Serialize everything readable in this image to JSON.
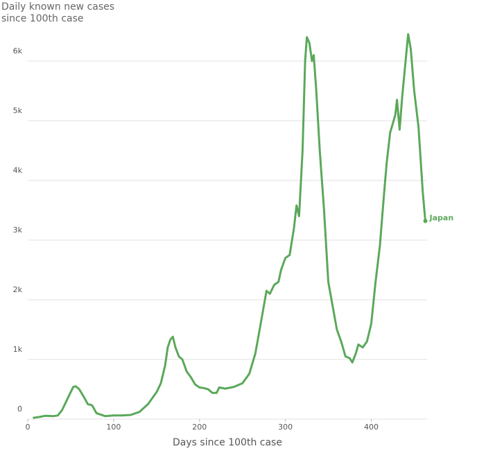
{
  "chart_data": {
    "type": "line",
    "title": "Daily known new cases since 100th case",
    "x_label": "Days since 100th case",
    "xlim": [
      0,
      465
    ],
    "xticks": [
      0,
      100,
      200,
      300,
      400
    ],
    "ylim": [
      0,
      6500
    ],
    "yticks": [
      0,
      {
        "value": 1000,
        "label": "1k"
      },
      {
        "value": 2000,
        "label": "2k"
      },
      {
        "value": 3000,
        "label": "3k"
      },
      {
        "value": 4000,
        "label": "4k"
      },
      {
        "value": 5000,
        "label": "5k"
      },
      {
        "value": 6000,
        "label": "6k"
      }
    ],
    "grid": true,
    "x": [
      6,
      15,
      20,
      30,
      35,
      40,
      45,
      50,
      53,
      56,
      60,
      65,
      70,
      75,
      80,
      90,
      100,
      110,
      120,
      130,
      140,
      150,
      155,
      160,
      163,
      166,
      169,
      172,
      176,
      180,
      185,
      190,
      195,
      200,
      205,
      210,
      215,
      220,
      223,
      230,
      240,
      250,
      258,
      265,
      270,
      275,
      278,
      282,
      287,
      292,
      295,
      300,
      305,
      310,
      313,
      316,
      320,
      323,
      325,
      328,
      331,
      333,
      336,
      340,
      345,
      350,
      355,
      360,
      365,
      370,
      375,
      378,
      382,
      385,
      390,
      395,
      400,
      405,
      410,
      415,
      418,
      422,
      425,
      428,
      430,
      433,
      436,
      440,
      443,
      446,
      450,
      455,
      460,
      463
    ],
    "series": [
      {
        "name": "Japan",
        "color": "#5aa85a",
        "values": [
          20,
          40,
          55,
          50,
          60,
          150,
          300,
          450,
          540,
          550,
          500,
          380,
          250,
          230,
          100,
          50,
          60,
          60,
          70,
          120,
          250,
          450,
          600,
          900,
          1200,
          1330,
          1380,
          1200,
          1050,
          1000,
          800,
          700,
          580,
          530,
          520,
          500,
          440,
          440,
          530,
          510,
          540,
          600,
          760,
          1100,
          1500,
          1900,
          2150,
          2100,
          2250,
          2300,
          2500,
          2700,
          2750,
          3200,
          3580,
          3400,
          4500,
          6000,
          6400,
          6300,
          6000,
          6100,
          5500,
          4500,
          3500,
          2300,
          1900,
          1500,
          1300,
          1050,
          1020,
          950,
          1100,
          1250,
          1200,
          1300,
          1600,
          2300,
          2900,
          3800,
          4300,
          4800,
          4950,
          5100,
          5350,
          4850,
          5400,
          6000,
          6450,
          6200,
          5500,
          4900,
          3800,
          3320
        ]
      }
    ]
  }
}
